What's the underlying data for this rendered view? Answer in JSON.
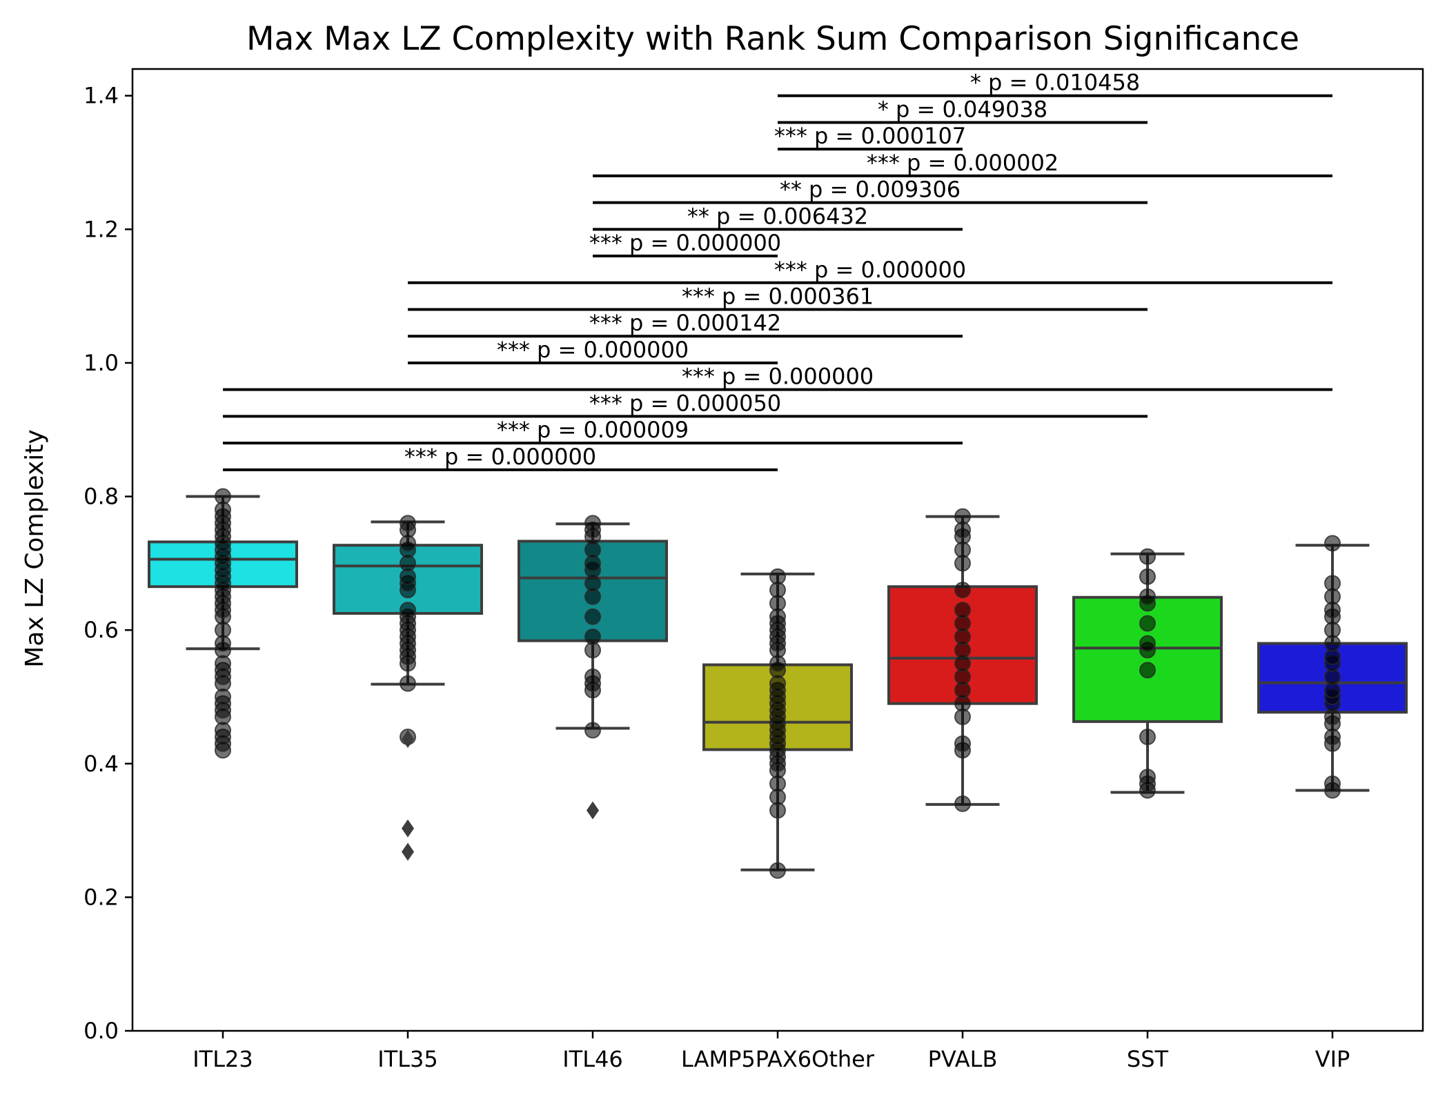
{
  "chart_data": {
    "type": "box",
    "title": "Max Max LZ Complexity with Rank Sum Comparison Significance",
    "xlabel": "",
    "ylabel": "Max LZ Complexity",
    "ylim": [
      0,
      1.44
    ],
    "yticks": [
      "0.0",
      "0.2",
      "0.4",
      "0.6",
      "0.8",
      "1.0",
      "1.2",
      "1.4"
    ],
    "grid": false,
    "categories": [
      "ITL23",
      "ITL35",
      "ITL46",
      "LAMP5PAX6Other",
      "PVALB",
      "SST",
      "VIP"
    ],
    "boxes": [
      {
        "name": "ITL23",
        "color": "#1ee1e3",
        "whisker_low": 0.572,
        "q1": 0.665,
        "median": 0.706,
        "q3": 0.732,
        "whisker_high": 0.8,
        "points": [
          0.42,
          0.43,
          0.44,
          0.45,
          0.47,
          0.48,
          0.49,
          0.5,
          0.52,
          0.53,
          0.54,
          0.55,
          0.57,
          0.58,
          0.6,
          0.62,
          0.63,
          0.64,
          0.65,
          0.66,
          0.67,
          0.68,
          0.69,
          0.7,
          0.71,
          0.72,
          0.73,
          0.74,
          0.75,
          0.76,
          0.77,
          0.78,
          0.8
        ],
        "outliers": []
      },
      {
        "name": "ITL35",
        "color": "#1cb3b4",
        "whisker_low": 0.519,
        "q1": 0.625,
        "median": 0.696,
        "q3": 0.727,
        "whisker_high": 0.762,
        "points": [
          0.44,
          0.52,
          0.55,
          0.56,
          0.57,
          0.58,
          0.59,
          0.6,
          0.61,
          0.62,
          0.63,
          0.66,
          0.67,
          0.68,
          0.7,
          0.72,
          0.73,
          0.75,
          0.76
        ],
        "outliers": [
          0.437,
          0.303,
          0.268
        ]
      },
      {
        "name": "ITL46",
        "color": "#138888",
        "whisker_low": 0.453,
        "q1": 0.584,
        "median": 0.678,
        "q3": 0.733,
        "whisker_high": 0.759,
        "points": [
          0.45,
          0.51,
          0.52,
          0.53,
          0.57,
          0.59,
          0.62,
          0.65,
          0.67,
          0.69,
          0.7,
          0.72,
          0.74,
          0.75,
          0.76
        ],
        "outliers": [
          0.33
        ]
      },
      {
        "name": "LAMP5PAX6Other",
        "color": "#b3b31c",
        "whisker_low": 0.241,
        "q1": 0.421,
        "median": 0.462,
        "q3": 0.548,
        "whisker_high": 0.684,
        "points": [
          0.24,
          0.33,
          0.35,
          0.37,
          0.39,
          0.4,
          0.41,
          0.42,
          0.43,
          0.44,
          0.45,
          0.46,
          0.47,
          0.48,
          0.49,
          0.5,
          0.51,
          0.52,
          0.54,
          0.55,
          0.57,
          0.58,
          0.59,
          0.6,
          0.61,
          0.62,
          0.64,
          0.66,
          0.68
        ],
        "outliers": []
      },
      {
        "name": "PVALB",
        "color": "#d81c1c",
        "whisker_low": 0.339,
        "q1": 0.49,
        "median": 0.558,
        "q3": 0.665,
        "whisker_high": 0.77,
        "points": [
          0.34,
          0.42,
          0.43,
          0.47,
          0.49,
          0.51,
          0.53,
          0.55,
          0.57,
          0.59,
          0.61,
          0.63,
          0.66,
          0.7,
          0.72,
          0.74,
          0.75,
          0.77
        ],
        "outliers": []
      },
      {
        "name": "SST",
        "color": "#1cd81c",
        "whisker_low": 0.357,
        "q1": 0.463,
        "median": 0.573,
        "q3": 0.649,
        "whisker_high": 0.714,
        "points": [
          0.36,
          0.37,
          0.38,
          0.44,
          0.54,
          0.57,
          0.58,
          0.61,
          0.64,
          0.65,
          0.68,
          0.71
        ],
        "outliers": []
      },
      {
        "name": "VIP",
        "color": "#1c1cd8",
        "whisker_low": 0.36,
        "q1": 0.477,
        "median": 0.521,
        "q3": 0.58,
        "whisker_high": 0.727,
        "points": [
          0.36,
          0.37,
          0.43,
          0.44,
          0.46,
          0.47,
          0.49,
          0.5,
          0.51,
          0.53,
          0.55,
          0.56,
          0.58,
          0.6,
          0.62,
          0.63,
          0.65,
          0.67,
          0.73
        ],
        "outliers": []
      }
    ],
    "comparisons": [
      {
        "from": 0,
        "to": 3,
        "y": 0.84,
        "label": "*** p = 0.000000"
      },
      {
        "from": 0,
        "to": 4,
        "y": 0.88,
        "label": "*** p = 0.000009"
      },
      {
        "from": 0,
        "to": 5,
        "y": 0.92,
        "label": "*** p = 0.000050"
      },
      {
        "from": 0,
        "to": 6,
        "y": 0.96,
        "label": "*** p = 0.000000"
      },
      {
        "from": 1,
        "to": 3,
        "y": 1.0,
        "label": "*** p = 0.000000"
      },
      {
        "from": 1,
        "to": 4,
        "y": 1.04,
        "label": "*** p = 0.000142"
      },
      {
        "from": 1,
        "to": 5,
        "y": 1.08,
        "label": "*** p = 0.000361"
      },
      {
        "from": 1,
        "to": 6,
        "y": 1.12,
        "label": "*** p = 0.000000"
      },
      {
        "from": 2,
        "to": 3,
        "y": 1.16,
        "label": "*** p = 0.000000"
      },
      {
        "from": 2,
        "to": 4,
        "y": 1.2,
        "label": "** p = 0.006432"
      },
      {
        "from": 2,
        "to": 5,
        "y": 1.24,
        "label": "** p = 0.009306"
      },
      {
        "from": 2,
        "to": 6,
        "y": 1.28,
        "label": "*** p = 0.000002"
      },
      {
        "from": 3,
        "to": 4,
        "y": 1.32,
        "label": "*** p = 0.000107"
      },
      {
        "from": 3,
        "to": 5,
        "y": 1.36,
        "label": "* p = 0.049038"
      },
      {
        "from": 3,
        "to": 6,
        "y": 1.4,
        "label": "* p = 0.010458"
      }
    ]
  }
}
